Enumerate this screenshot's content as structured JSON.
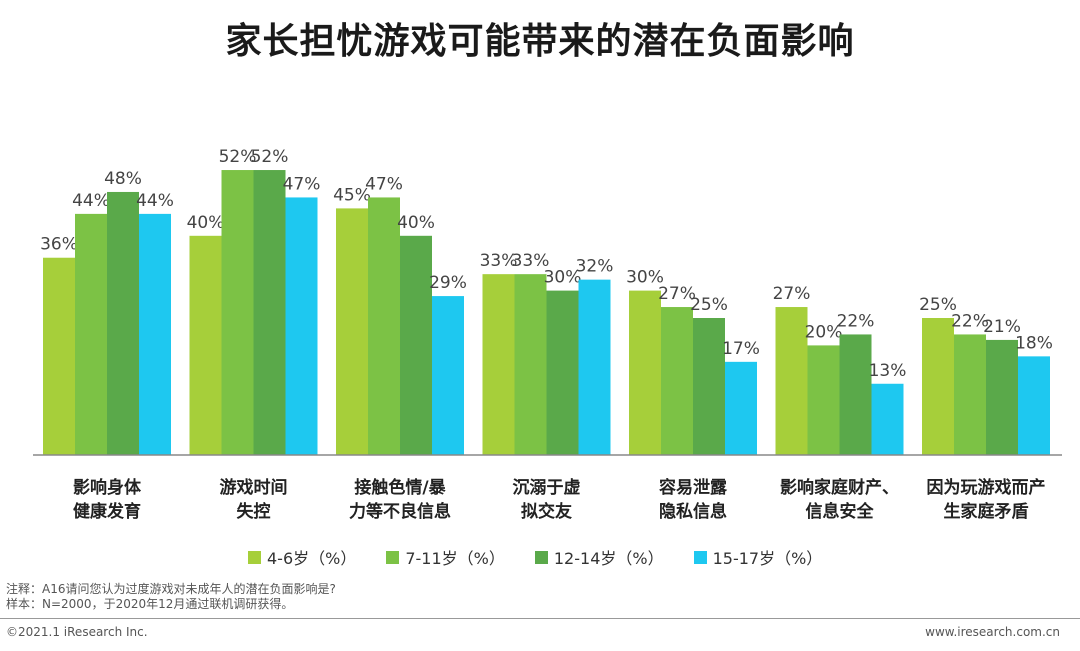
{
  "chart_data": {
    "type": "bar",
    "title": "家长担忧游戏可能带来的潜在负面影响",
    "categories": [
      [
        "影响身体",
        "健康发育"
      ],
      [
        "游戏时间",
        "失控"
      ],
      [
        "接触色情/暴",
        "力等不良信息"
      ],
      [
        "沉溺于虚",
        "拟交友"
      ],
      [
        "容易泄露",
        "隐私信息"
      ],
      [
        "影响家庭财产、",
        "信息安全"
      ],
      [
        "因为玩游戏而产",
        "生家庭矛盾"
      ]
    ],
    "series": [
      {
        "name": "4-6岁（%）",
        "color": "#a6cf3a",
        "values": [
          36,
          40,
          45,
          33,
          30,
          27,
          25
        ]
      },
      {
        "name": "7-11岁（%）",
        "color": "#7cc245",
        "values": [
          44,
          52,
          47,
          33,
          27,
          20,
          22
        ]
      },
      {
        "name": "12-14岁（%）",
        "color": "#5aa94a",
        "values": [
          48,
          52,
          40,
          30,
          25,
          22,
          21
        ]
      },
      {
        "name": "15-17岁（%）",
        "color": "#1ec8f0",
        "values": [
          44,
          47,
          29,
          32,
          17,
          13,
          18
        ]
      }
    ],
    "value_suffix": "%",
    "ylim": [
      0,
      60
    ]
  },
  "notes": {
    "line1": "注释：A16请问您认为过度游戏对未成年人的潜在负面影响是?",
    "line2": "样本：N=2000，于2020年12月通过联机调研获得。"
  },
  "footer": {
    "copyright": "©2021.1 iResearch Inc.",
    "website": "www.iresearch.com.cn"
  }
}
